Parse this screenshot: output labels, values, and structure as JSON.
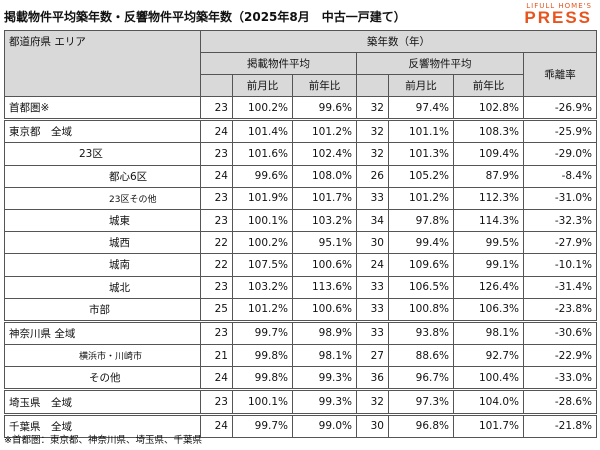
{
  "header": {
    "title": "掲載物件平均築年数・反響物件平均築年数（2025年8月　中古一戸建て）",
    "logo_top": "LIFULL HOME'S",
    "logo_bottom": "PRESS"
  },
  "table": {
    "area_header": "都道府県 エリア",
    "age_header": "築年数（年）",
    "listed_header": "掲載物件平均",
    "inquiry_header": "反響物件平均",
    "gap_header": "乖離率",
    "sub_headers": [
      "前月比",
      "前年比",
      "前月比",
      "前年比"
    ],
    "rows": [
      [
        "首都圏※",
        "23",
        "100.2%",
        "99.6%",
        "32",
        "97.4%",
        "102.8%",
        "-26.9%"
      ],
      [
        "東京都　全域",
        "24",
        "101.4%",
        "101.2%",
        "32",
        "101.1%",
        "108.3%",
        "-25.9%"
      ],
      [
        "23区",
        "23",
        "101.6%",
        "102.4%",
        "32",
        "101.3%",
        "109.4%",
        "-29.0%"
      ],
      [
        "都心6区",
        "24",
        "99.6%",
        "108.0%",
        "26",
        "105.2%",
        "87.9%",
        "-8.4%"
      ],
      [
        "23区その他",
        "23",
        "101.9%",
        "101.7%",
        "33",
        "101.2%",
        "112.3%",
        "-31.0%"
      ],
      [
        "城東",
        "23",
        "100.1%",
        "103.2%",
        "34",
        "97.8%",
        "114.3%",
        "-32.3%"
      ],
      [
        "城西",
        "22",
        "100.2%",
        "95.1%",
        "30",
        "99.4%",
        "99.5%",
        "-27.9%"
      ],
      [
        "城南",
        "22",
        "107.5%",
        "100.6%",
        "24",
        "109.6%",
        "99.1%",
        "-10.1%"
      ],
      [
        "城北",
        "23",
        "103.2%",
        "113.6%",
        "33",
        "106.5%",
        "126.4%",
        "-31.4%"
      ],
      [
        "市部",
        "25",
        "101.2%",
        "100.6%",
        "33",
        "100.8%",
        "106.3%",
        "-23.8%"
      ],
      [
        "神奈川県 全域",
        "23",
        "99.7%",
        "98.9%",
        "33",
        "93.8%",
        "98.1%",
        "-30.6%"
      ],
      [
        "横浜市・川崎市",
        "21",
        "99.8%",
        "98.1%",
        "27",
        "88.6%",
        "92.7%",
        "-22.9%"
      ],
      [
        "その他",
        "24",
        "99.8%",
        "99.3%",
        "36",
        "96.7%",
        "100.4%",
        "-33.0%"
      ],
      [
        "埼玉県　全域",
        "23",
        "100.1%",
        "99.3%",
        "32",
        "97.3%",
        "104.0%",
        "-28.6%"
      ],
      [
        "千葉県　全域",
        "24",
        "99.7%",
        "99.0%",
        "30",
        "96.8%",
        "101.7%",
        "-21.8%"
      ]
    ]
  },
  "footnote": "※首都圏：東京都、神奈川県、埼玉県、千葉県"
}
